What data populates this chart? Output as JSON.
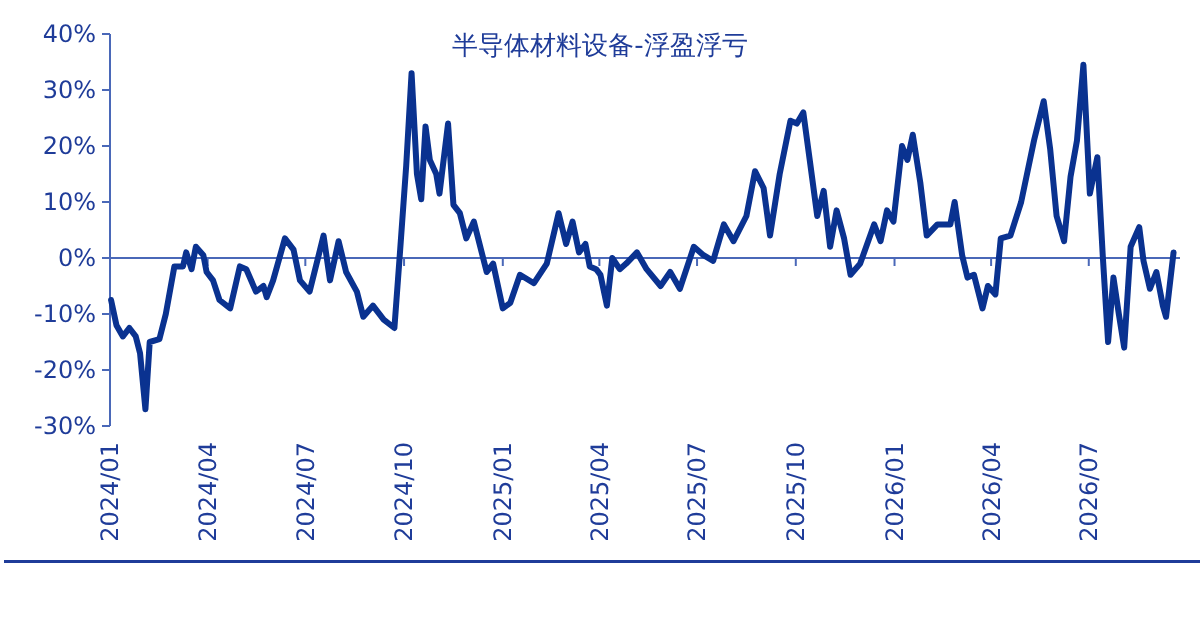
{
  "chart_data": {
    "type": "line",
    "title": "半导体材料设备-浮盈浮亏",
    "xlim": [
      "2024-01-01",
      "2026-09-24"
    ],
    "xticks": [
      {
        "value": "2024-01-01",
        "label": "2024/01"
      },
      {
        "value": "2024-04-01",
        "label": "2024/04"
      },
      {
        "value": "2024-07-01",
        "label": "2024/07"
      },
      {
        "value": "2024-10-01",
        "label": "2024/10"
      },
      {
        "value": "2025-01-01",
        "label": "2025/01"
      },
      {
        "value": "2025-04-01",
        "label": "2025/04"
      },
      {
        "value": "2025-07-01",
        "label": "2025/07"
      },
      {
        "value": "2025-10-01",
        "label": "2025/10"
      },
      {
        "value": "2026-01-01",
        "label": "2026/01"
      },
      {
        "value": "2026-04-01",
        "label": "2026/04"
      },
      {
        "value": "2026-07-01",
        "label": "2026/07"
      }
    ],
    "ylim": [
      -30,
      40
    ],
    "yticks": [
      {
        "value": -30,
        "label": "-30%"
      },
      {
        "value": -20,
        "label": "-20%"
      },
      {
        "value": -10,
        "label": "-10%"
      },
      {
        "value": 0,
        "label": "0%"
      },
      {
        "value": 10,
        "label": "10%"
      },
      {
        "value": 20,
        "label": "20%"
      },
      {
        "value": 30,
        "label": "30%"
      },
      {
        "value": 40,
        "label": "40%"
      }
    ],
    "grid": false,
    "ref_lines": [
      {
        "axis": "y",
        "value": 0,
        "color": "#4a68b8"
      }
    ],
    "marker": "none",
    "line_style": "solid",
    "x": [
      "2024-01-02",
      "2024-01-07",
      "2024-01-13",
      "2024-01-19",
      "2024-01-25",
      "2024-01-29",
      "2024-02-03",
      "2024-02-07",
      "2024-02-16",
      "2024-02-22",
      "2024-03-01",
      "2024-03-09",
      "2024-03-12",
      "2024-03-17",
      "2024-03-21",
      "2024-03-28",
      "2024-03-31",
      "2024-04-06",
      "2024-04-12",
      "2024-04-22",
      "2024-05-01",
      "2024-05-07",
      "2024-05-16",
      "2024-05-23",
      "2024-05-26",
      "2024-06-01",
      "2024-06-12",
      "2024-06-20",
      "2024-06-26",
      "2024-07-05",
      "2024-07-18",
      "2024-07-24",
      "2024-08-01",
      "2024-08-08",
      "2024-08-18",
      "2024-08-24",
      "2024-09-02",
      "2024-09-12",
      "2024-09-22",
      "2024-09-27",
      "2024-10-03",
      "2024-10-08",
      "2024-10-13",
      "2024-10-17",
      "2024-10-21",
      "2024-10-25",
      "2024-10-31",
      "2024-11-03",
      "2024-11-11",
      "2024-11-16",
      "2024-11-22",
      "2024-11-28",
      "2024-12-05",
      "2024-12-11",
      "2024-12-17",
      "2024-12-23",
      "2025-01-01",
      "2025-01-08",
      "2025-01-17",
      "2025-01-30",
      "2025-02-11",
      "2025-02-22",
      "2025-03-01",
      "2025-03-07",
      "2025-03-13",
      "2025-03-19",
      "2025-03-23",
      "2025-03-29",
      "2025-04-02",
      "2025-04-08",
      "2025-04-13",
      "2025-04-20",
      "2025-04-26",
      "2025-05-06",
      "2025-05-15",
      "2025-05-28",
      "2025-06-06",
      "2025-06-15",
      "2025-06-28",
      "2025-07-07",
      "2025-07-16",
      "2025-07-26",
      "2025-08-04",
      "2025-08-16",
      "2025-08-24",
      "2025-09-01",
      "2025-09-07",
      "2025-09-16",
      "2025-09-26",
      "2025-10-02",
      "2025-10-08",
      "2025-10-14",
      "2025-10-21",
      "2025-10-27",
      "2025-11-02",
      "2025-11-08",
      "2025-11-15",
      "2025-11-21",
      "2025-11-30",
      "2025-12-13",
      "2025-12-19",
      "2025-12-25",
      "2025-12-31",
      "2026-01-08",
      "2026-01-13",
      "2026-01-18",
      "2026-01-25",
      "2026-01-31",
      "2026-02-10",
      "2026-02-22",
      "2026-02-26",
      "2026-03-05",
      "2026-03-10",
      "2026-03-16",
      "2026-03-24",
      "2026-03-29",
      "2026-04-05",
      "2026-04-10",
      "2026-04-19",
      "2026-04-29",
      "2026-05-11",
      "2026-05-20",
      "2026-05-26",
      "2026-06-01",
      "2026-06-08",
      "2026-06-14",
      "2026-06-20",
      "2026-06-26",
      "2026-07-02",
      "2026-07-09",
      "2026-07-14",
      "2026-07-19",
      "2026-07-24",
      "2026-07-29",
      "2026-08-03",
      "2026-08-09",
      "2026-08-17",
      "2026-08-21",
      "2026-08-27",
      "2026-09-02",
      "2026-09-08",
      "2026-09-11",
      "2026-09-18"
    ],
    "series": [
      {
        "color": "#0a3290",
        "values": [
          -7.5,
          -12,
          -14,
          -12.5,
          -14,
          -17,
          -27,
          -15,
          -14.5,
          -10,
          -1.5,
          -1.5,
          1,
          -2,
          2,
          0.5,
          -2.5,
          -4,
          -7.5,
          -9,
          -1.5,
          -2,
          -6,
          -5,
          -7,
          -4,
          3.5,
          1.5,
          -4,
          -6,
          4,
          -4,
          3,
          -2.5,
          -6,
          -10.5,
          -8.5,
          -11,
          -12.5,
          0.5,
          16.5,
          33,
          15,
          10.5,
          23.5,
          17.5,
          15,
          11.5,
          24,
          9.5,
          8,
          3.5,
          6.5,
          2,
          -2.5,
          -1,
          -9,
          -8,
          -3,
          -4.5,
          -1,
          8,
          2.5,
          6.5,
          1,
          2.5,
          -1.5,
          -2,
          -3,
          -8.5,
          0,
          -2,
          -1,
          1,
          -2,
          -5,
          -2.5,
          -5.5,
          2,
          0.5,
          -0.5,
          6,
          3,
          7.5,
          15.5,
          12.5,
          4,
          15,
          24.5,
          24,
          26,
          17.5,
          7.5,
          12,
          2,
          8.5,
          3.5,
          -3,
          -1,
          6,
          3,
          8.5,
          6.5,
          20,
          17.5,
          22,
          13.5,
          4,
          6,
          6,
          10,
          0.5,
          -3.5,
          -3,
          -9,
          -5,
          -6.5,
          3.5,
          4,
          10,
          21,
          28,
          19.5,
          7.5,
          3,
          14.5,
          21,
          34.5,
          11.5,
          18,
          0.5,
          -15,
          -3.5,
          -10,
          -16,
          2,
          5.5,
          -0.5,
          -5.5,
          -2.5,
          -8.5,
          -10.5,
          1
        ]
      }
    ]
  }
}
